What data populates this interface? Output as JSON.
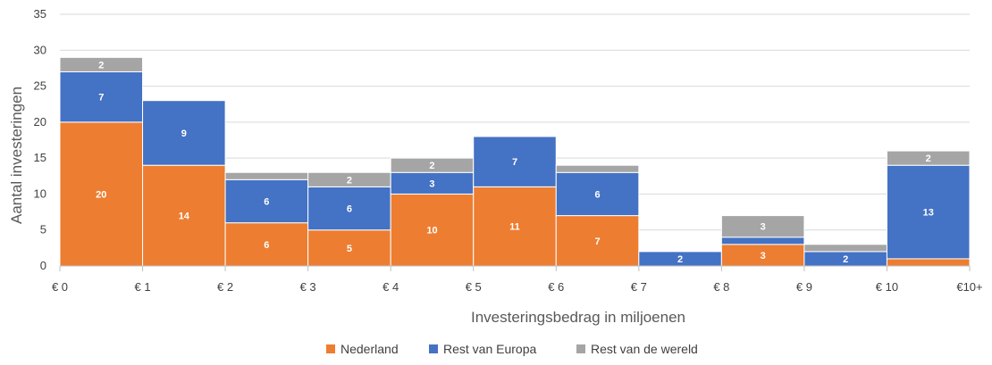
{
  "chart_data": {
    "type": "bar",
    "stacked": true,
    "title": "",
    "xlabel": "Investeringsbedrag in miljoenen",
    "ylabel": "Aantal investeringen",
    "ylim": [
      0,
      35
    ],
    "yticks": [
      0,
      5,
      10,
      15,
      20,
      25,
      30,
      35
    ],
    "xtick_labels": [
      "€ 0",
      "€ 1",
      "€ 2",
      "€ 3",
      "€ 4",
      "€ 5",
      "€ 6",
      "€ 7",
      "€ 8",
      "€ 9",
      "€ 10",
      "€10+"
    ],
    "grid": true,
    "legend_position": "bottom",
    "series": [
      {
        "name": "Nederland",
        "color": "#ED7D31",
        "values": [
          20,
          14,
          6,
          5,
          10,
          11,
          7,
          0,
          3,
          0,
          1
        ]
      },
      {
        "name": "Rest van Europa",
        "color": "#4472C4",
        "values": [
          7,
          9,
          6,
          6,
          3,
          7,
          6,
          2,
          1,
          2,
          13
        ]
      },
      {
        "name": "Rest van de wereld",
        "color": "#A5A5A5",
        "values": [
          2,
          0,
          1,
          2,
          2,
          0,
          1,
          0,
          3,
          1,
          2
        ]
      }
    ],
    "data_labels": [
      [
        20,
        14,
        6,
        5,
        10,
        11,
        7,
        null,
        3,
        null,
        null
      ],
      [
        7,
        9,
        6,
        6,
        3,
        7,
        6,
        2,
        null,
        2,
        13
      ],
      [
        2,
        null,
        null,
        2,
        2,
        null,
        null,
        null,
        3,
        null,
        2
      ]
    ]
  }
}
